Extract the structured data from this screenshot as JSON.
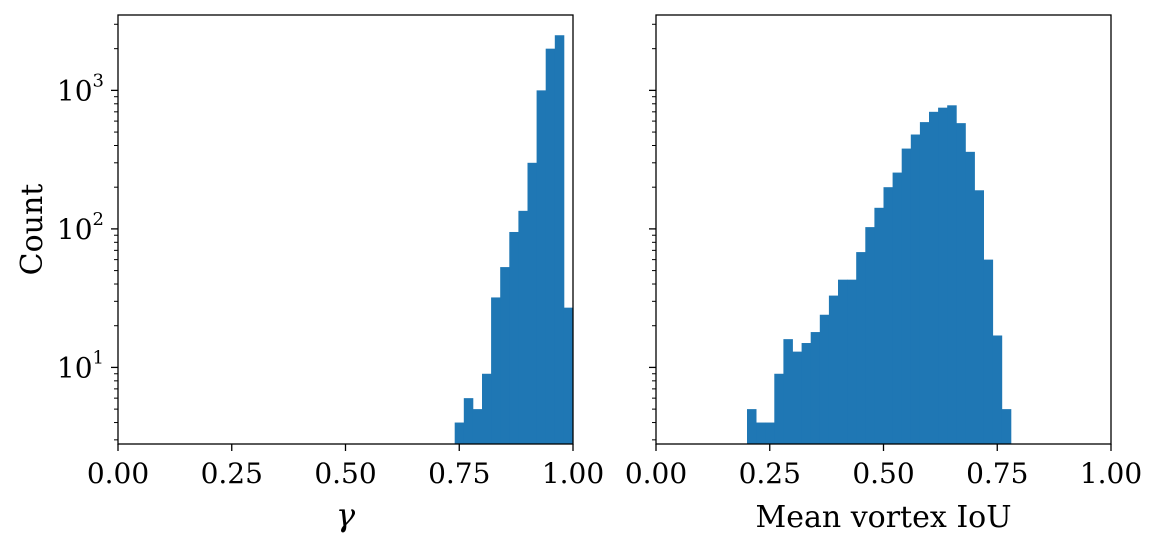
{
  "chart_data": [
    {
      "type": "bar",
      "subtype": "histogram",
      "xlabel": "γ",
      "ylabel": "Count",
      "xlim": [
        0.0,
        1.0
      ],
      "ylim": [
        2.8,
        3500
      ],
      "yscale": "log",
      "xticks": [
        "0.00",
        "0.25",
        "0.50",
        "0.75",
        "1.00"
      ],
      "yticks": [
        {
          "base": "10",
          "exp": "1"
        },
        {
          "base": "10",
          "exp": "2"
        },
        {
          "base": "10",
          "exp": "3"
        }
      ],
      "bar_color": "#1f77b4",
      "grid": false,
      "bin_width": 0.02,
      "bins": [
        {
          "x0": 0.74,
          "count": 4
        },
        {
          "x0": 0.76,
          "count": 6
        },
        {
          "x0": 0.78,
          "count": 5
        },
        {
          "x0": 0.8,
          "count": 9
        },
        {
          "x0": 0.82,
          "count": 32
        },
        {
          "x0": 0.84,
          "count": 53
        },
        {
          "x0": 0.86,
          "count": 95
        },
        {
          "x0": 0.88,
          "count": 135
        },
        {
          "x0": 0.9,
          "count": 300
        },
        {
          "x0": 0.92,
          "count": 1000
        },
        {
          "x0": 0.94,
          "count": 2000
        },
        {
          "x0": 0.96,
          "count": 2500
        },
        {
          "x0": 0.98,
          "count": 27
        }
      ]
    },
    {
      "type": "bar",
      "subtype": "histogram",
      "xlabel": "Mean vortex IoU",
      "ylabel": "",
      "xlim": [
        0.0,
        1.0
      ],
      "ylim": [
        2.8,
        3500
      ],
      "yscale": "log",
      "sharey": true,
      "xticks": [
        "0.00",
        "0.25",
        "0.50",
        "0.75",
        "1.00"
      ],
      "bar_color": "#1f77b4",
      "grid": false,
      "bin_width": 0.02,
      "bins": [
        {
          "x0": 0.2,
          "count": 5
        },
        {
          "x0": 0.22,
          "count": 4
        },
        {
          "x0": 0.24,
          "count": 4
        },
        {
          "x0": 0.26,
          "count": 9
        },
        {
          "x0": 0.28,
          "count": 16
        },
        {
          "x0": 0.3,
          "count": 13
        },
        {
          "x0": 0.32,
          "count": 15
        },
        {
          "x0": 0.34,
          "count": 18
        },
        {
          "x0": 0.36,
          "count": 24
        },
        {
          "x0": 0.38,
          "count": 33
        },
        {
          "x0": 0.4,
          "count": 43
        },
        {
          "x0": 0.42,
          "count": 43
        },
        {
          "x0": 0.44,
          "count": 68
        },
        {
          "x0": 0.46,
          "count": 103
        },
        {
          "x0": 0.48,
          "count": 142
        },
        {
          "x0": 0.5,
          "count": 200
        },
        {
          "x0": 0.52,
          "count": 255
        },
        {
          "x0": 0.54,
          "count": 380
        },
        {
          "x0": 0.56,
          "count": 480
        },
        {
          "x0": 0.58,
          "count": 590
        },
        {
          "x0": 0.6,
          "count": 700
        },
        {
          "x0": 0.62,
          "count": 750
        },
        {
          "x0": 0.64,
          "count": 780
        },
        {
          "x0": 0.66,
          "count": 580
        },
        {
          "x0": 0.68,
          "count": 360
        },
        {
          "x0": 0.7,
          "count": 190
        },
        {
          "x0": 0.72,
          "count": 60
        },
        {
          "x0": 0.74,
          "count": 17
        },
        {
          "x0": 0.76,
          "count": 5
        }
      ]
    }
  ]
}
